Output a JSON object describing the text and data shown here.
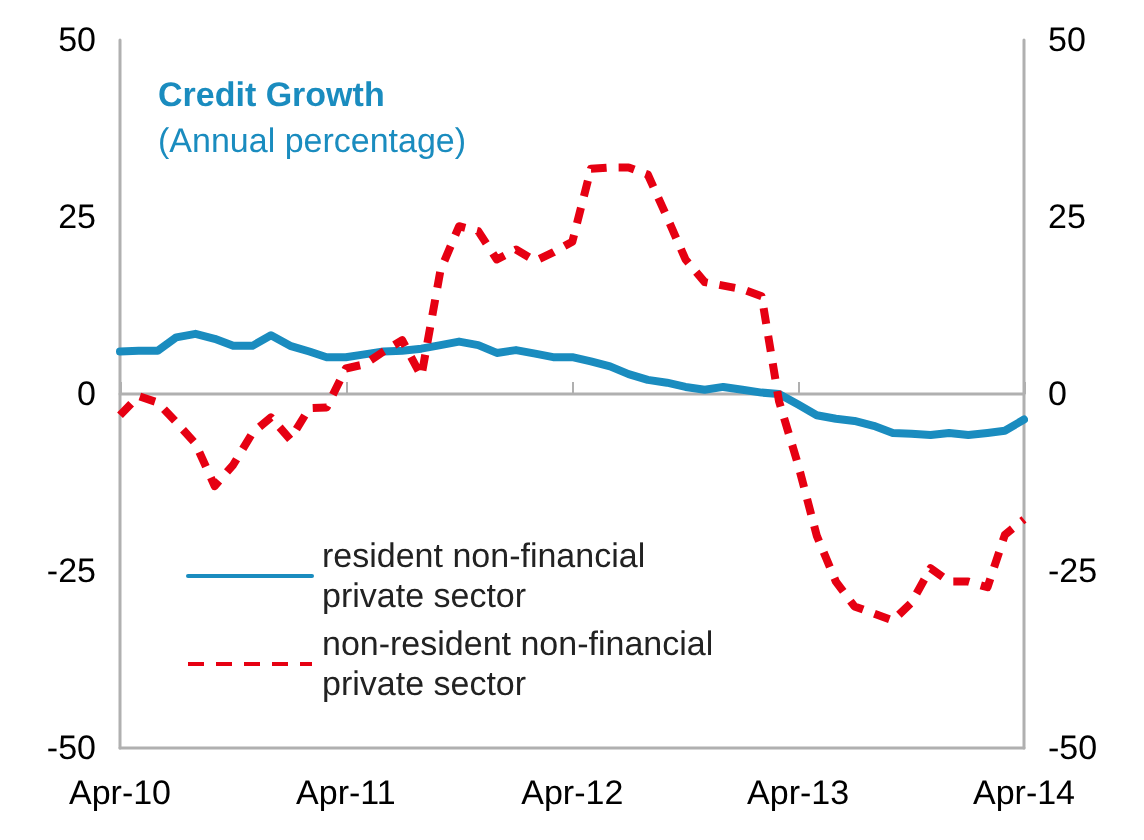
{
  "chart_data": {
    "type": "line",
    "title": "Credit Growth",
    "subtitle": "(Annual percentage)",
    "x": [
      "2010-04",
      "2010-05",
      "2010-06",
      "2010-07",
      "2010-08",
      "2010-09",
      "2010-10",
      "2010-11",
      "2010-12",
      "2011-01",
      "2011-02",
      "2011-03",
      "2011-04",
      "2011-05",
      "2011-06",
      "2011-07",
      "2011-08",
      "2011-09",
      "2011-10",
      "2011-11",
      "2011-12",
      "2012-01",
      "2012-02",
      "2012-03",
      "2012-04",
      "2012-05",
      "2012-06",
      "2012-07",
      "2012-08",
      "2012-09",
      "2012-10",
      "2012-11",
      "2012-12",
      "2013-01",
      "2013-02",
      "2013-03",
      "2013-04",
      "2013-05",
      "2013-06",
      "2013-07",
      "2013-08",
      "2013-09",
      "2013-10",
      "2013-11",
      "2013-12",
      "2014-01",
      "2014-02",
      "2014-03",
      "2014-04"
    ],
    "series": [
      {
        "name": "resident non-financial  private sector",
        "color": "#1a8cbf",
        "line_style": "solid",
        "values": [
          6.0,
          6.1,
          6.1,
          8.0,
          8.5,
          7.8,
          6.8,
          6.8,
          8.3,
          6.8,
          6.0,
          5.2,
          5.2,
          5.6,
          6.0,
          6.1,
          6.4,
          6.9,
          7.4,
          6.9,
          5.8,
          6.2,
          5.7,
          5.2,
          5.2,
          4.6,
          3.9,
          2.8,
          2.0,
          1.6,
          1.0,
          0.6,
          1.0,
          0.6,
          0.2,
          0.0,
          -1.5,
          -3.0,
          -3.5,
          -3.8,
          -4.5,
          -5.5,
          -5.6,
          -5.8,
          -5.5,
          -5.8,
          -5.5,
          -5.2,
          -3.6
        ]
      },
      {
        "name": "non-resident non-financial  private sector",
        "color": "#e60012",
        "line_style": "dashed",
        "values": [
          -3.0,
          -0.3,
          -1.2,
          -4.0,
          -7.0,
          -13.0,
          -10.0,
          -5.5,
          -3.3,
          -6.4,
          -2.0,
          -1.9,
          3.6,
          4.2,
          6.0,
          7.6,
          2.5,
          17.5,
          23.7,
          23.0,
          19.0,
          20.4,
          18.8,
          20.0,
          21.5,
          31.8,
          32.0,
          32.0,
          31.0,
          25.0,
          19.0,
          15.8,
          15.3,
          14.8,
          13.8,
          -1.0,
          -10.0,
          -20.0,
          -26.5,
          -30.0,
          -31.0,
          -32.0,
          -29.5,
          -24.6,
          -26.5,
          -26.5,
          -27.3,
          -19.9,
          -17.7
        ]
      }
    ],
    "xlim": [
      "2010-04",
      "2014-04"
    ],
    "xticks": [
      {
        "value": "2010-04",
        "label": "Apr-10"
      },
      {
        "value": "2011-04",
        "label": "Apr-11"
      },
      {
        "value": "2012-04",
        "label": "Apr-12"
      },
      {
        "value": "2013-04",
        "label": "Apr-13"
      },
      {
        "value": "2014-04",
        "label": "Apr-14"
      }
    ],
    "ylim": [
      -50,
      50
    ],
    "yticks": [
      -50,
      -25,
      0,
      25,
      50
    ],
    "y2lim": [
      -50,
      50
    ],
    "y2ticks": [
      -50,
      -25,
      0,
      25,
      50
    ],
    "legend": "bottom left",
    "marker": "none"
  }
}
